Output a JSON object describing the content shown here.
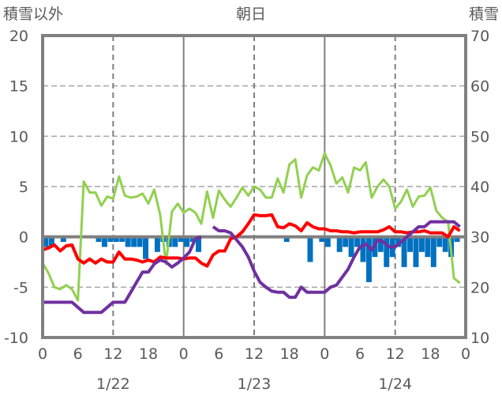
{
  "chart_data": {
    "type": "line",
    "title": "朝日",
    "ylabel_left": "積雪以外",
    "ylabel_right": "積雪",
    "ylim_left": [
      -10,
      20
    ],
    "ylim_right": [
      10,
      70
    ],
    "yticks_left": [
      "20",
      "15",
      "10",
      "5",
      "0",
      "-5",
      "-10"
    ],
    "yticks_right": [
      "70",
      "60",
      "50",
      "40",
      "30",
      "20",
      "10"
    ],
    "xlim_hours": [
      0,
      72
    ],
    "xticks": [
      "0",
      "6",
      "12",
      "18",
      "0",
      "6",
      "12",
      "18",
      "0",
      "6",
      "12",
      "18",
      "0"
    ],
    "date_labels": [
      "1/22",
      "1/23",
      "1/24"
    ],
    "grid": true,
    "series": [
      {
        "name": "green",
        "axis": "left",
        "color": "#92D050",
        "type": "line",
        "values": [
          -2.6,
          -3.6,
          -5,
          -5.2,
          -4.8,
          -5.2,
          -6.3,
          5.5,
          4.4,
          4.4,
          3.1,
          4,
          3.8,
          6,
          4.1,
          3.9,
          4,
          4.3,
          3.3,
          4.7,
          2.2,
          -2.7,
          2.5,
          3.3,
          2.4,
          2.8,
          2.4,
          1.3,
          4.5,
          1.9,
          4.6,
          3.7,
          3,
          3.9,
          4.9,
          4.1,
          5,
          4.7,
          3.9,
          3.9,
          5.8,
          4.4,
          7.2,
          7.7,
          3.9,
          6.1,
          6.9,
          6.6,
          8.3,
          7.1,
          5.3,
          5.9,
          4.4,
          6.9,
          6.6,
          7.4,
          3.9,
          5,
          5.7,
          5,
          2.8,
          3.5,
          4.7,
          3,
          4,
          4.1,
          4.9,
          2.6,
          1.9,
          1.5,
          -4.1,
          -4.6
        ]
      },
      {
        "name": "red",
        "axis": "left",
        "color": "#FF0000",
        "type": "line",
        "values": [
          -1.3,
          -1.1,
          -0.8,
          -1.4,
          -0.9,
          -0.8,
          -2.2,
          -2.6,
          -2.2,
          -2.6,
          -2.2,
          -2.5,
          -2.5,
          -1.5,
          -2.2,
          -2.2,
          -2.3,
          -2.5,
          -2.3,
          -2.5,
          -2,
          -2.1,
          -2.1,
          -2.1,
          -2.2,
          -2.1,
          -2.1,
          -2.6,
          -2.9,
          -1.8,
          -1.4,
          -1.4,
          -0.2,
          0,
          0.5,
          1.3,
          2.2,
          2.1,
          2.1,
          2.2,
          1,
          0.9,
          1.3,
          1.1,
          0.6,
          1.4,
          1,
          0.8,
          0.8,
          0.6,
          0.6,
          0.5,
          0.5,
          0.4,
          0.5,
          0.5,
          0.5,
          0.5,
          0.7,
          1,
          0.5,
          0.5,
          0.4,
          0.5,
          0.5,
          0.6,
          0.4,
          0.4,
          0.4,
          0,
          1,
          0.6
        ]
      },
      {
        "name": "purple",
        "axis": "right",
        "color": "#7030A0",
        "type": "line",
        "values": [
          17,
          17,
          17,
          17,
          17,
          17,
          16,
          15,
          15,
          15,
          15,
          16,
          17,
          17,
          17,
          19,
          21,
          23,
          23,
          24.6,
          25.4,
          25,
          24,
          24.8,
          25.8,
          27,
          29.6,
          30,
          null,
          32,
          31.2,
          31.2,
          30.8,
          29.4,
          28,
          26,
          23.2,
          21,
          20,
          19.2,
          19,
          19,
          18,
          18,
          20,
          19,
          19,
          19,
          19,
          20,
          20.4,
          22,
          23.6,
          26,
          28,
          28.6,
          27.4,
          29.4,
          29,
          28,
          28,
          29,
          30,
          31,
          32,
          32,
          33,
          33,
          33,
          33,
          33,
          32
        ]
      },
      {
        "name": "blue",
        "axis": "left",
        "color": "#0070C0",
        "type": "bar",
        "values": [
          -1,
          -1,
          0,
          -0.5,
          0,
          0,
          0,
          0,
          0,
          -0.5,
          -1,
          -0.5,
          -0.5,
          -0.5,
          -1,
          -1,
          -1,
          -2.2,
          0,
          -1.5,
          -0.5,
          -1,
          -1,
          -0.5,
          -1,
          -0.5,
          -1.5,
          0,
          0,
          0,
          0,
          0,
          0,
          0,
          0,
          0,
          0,
          0,
          0,
          0,
          0,
          -0.5,
          0,
          0,
          0,
          -2.5,
          0,
          -0.5,
          -1,
          0,
          -1.5,
          -1,
          -2,
          -1,
          -2.5,
          -4.5,
          -2,
          -1.5,
          -3,
          -2,
          -1,
          -3,
          -1.5,
          -3,
          -1.5,
          -2,
          -3,
          -1,
          -1.5,
          -2,
          -0.5,
          0
        ]
      }
    ]
  }
}
